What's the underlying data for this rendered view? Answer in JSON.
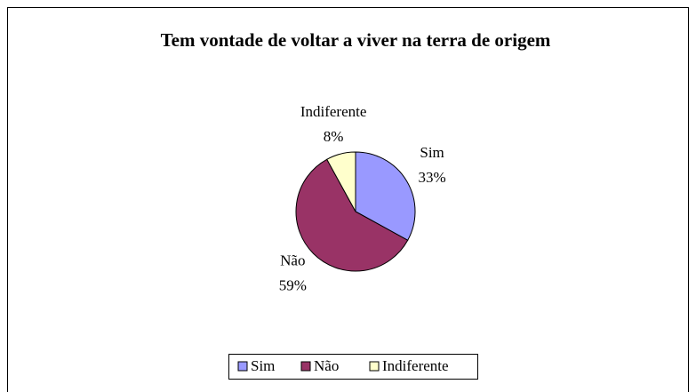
{
  "chart_data": {
    "type": "pie",
    "title": "Tem vontade de voltar a viver na terra de origem",
    "categories": [
      "Sim",
      "Não",
      "Indiferente"
    ],
    "values": [
      33,
      59,
      8
    ],
    "value_labels": [
      "33%",
      "59%",
      "8%"
    ],
    "colors": [
      "#9999ff",
      "#993366",
      "#ffffcc"
    ],
    "legend": "bottom"
  }
}
